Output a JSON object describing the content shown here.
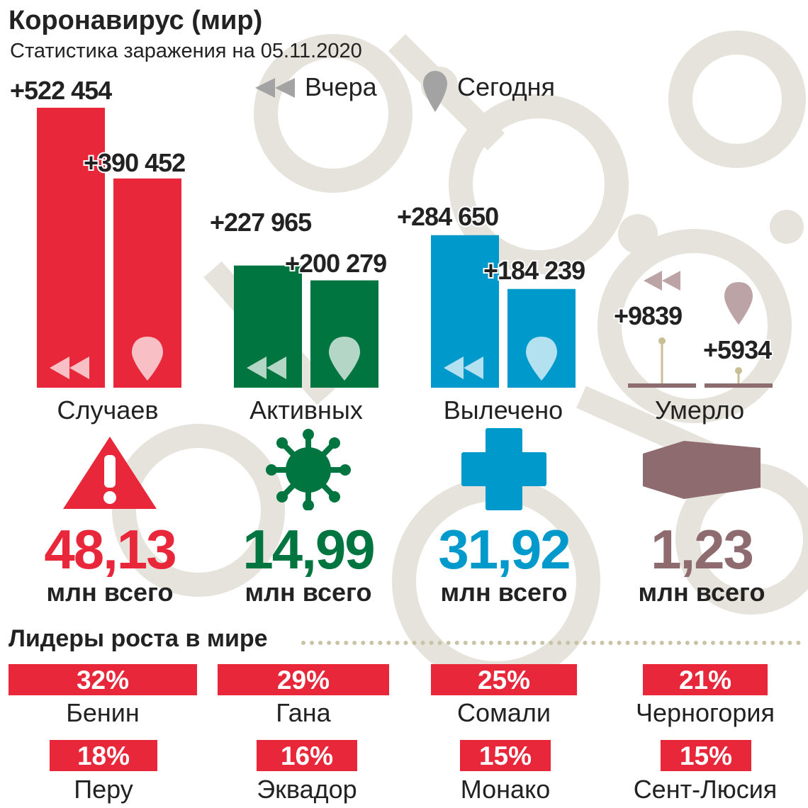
{
  "title": "Коронавирус (мир)",
  "subtitle": "Статистика заражения на 05.11.2020",
  "legend": {
    "yesterday": "Вчера",
    "today": "Сегодня"
  },
  "chart_data": {
    "type": "bar",
    "categories": [
      "Случаев",
      "Активных",
      "Вылечено",
      "Умерло"
    ],
    "series": [
      {
        "name": "Вчера",
        "values": [
          522454,
          227965,
          284650,
          9839
        ]
      },
      {
        "name": "Сегодня",
        "values": [
          390452,
          200279,
          184239,
          5934
        ]
      }
    ],
    "value_labels": {
      "Вчера": [
        "+522 454",
        "+227 965",
        "+284 650",
        "+9839"
      ],
      "Сегодня": [
        "+390 452",
        "+200 279",
        "+184 239",
        "+5934"
      ]
    },
    "colors": [
      "#e8283a",
      "#007540",
      "#0099cc",
      "#8e6b6e"
    ]
  },
  "totals": [
    {
      "value": "48,13",
      "unit": "млн всего",
      "color": "#e8283a"
    },
    {
      "value": "14,99",
      "unit": "млн всего",
      "color": "#007540"
    },
    {
      "value": "31,92",
      "unit": "млн всего",
      "color": "#0099cc"
    },
    {
      "value": "1,23",
      "unit": "млн всего",
      "color": "#8e6b6e"
    }
  ],
  "leaders": {
    "title": "Лидеры роста в мире",
    "items": [
      {
        "pct": "32%",
        "country": "Бенин"
      },
      {
        "pct": "29%",
        "country": "Гана"
      },
      {
        "pct": "25%",
        "country": "Сомали"
      },
      {
        "pct": "21%",
        "country": "Черногория"
      },
      {
        "pct": "18%",
        "country": "Перу"
      },
      {
        "pct": "16%",
        "country": "Эквадор"
      },
      {
        "pct": "15%",
        "country": "Монако"
      },
      {
        "pct": "15%",
        "country": "Сент-Люсия"
      }
    ]
  }
}
